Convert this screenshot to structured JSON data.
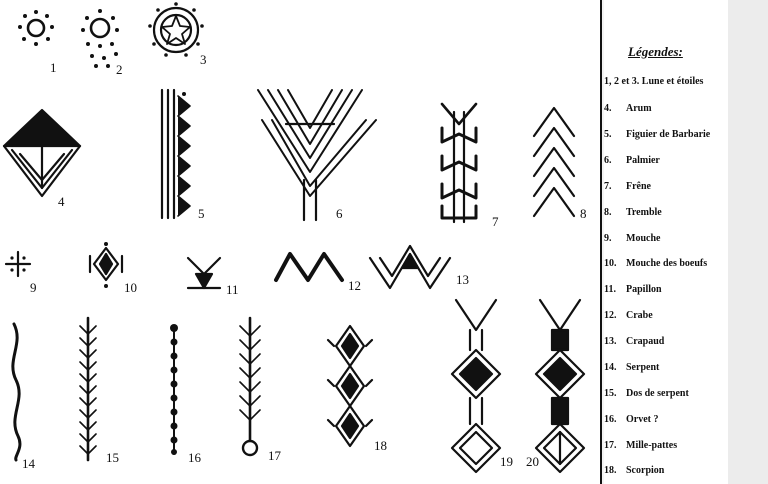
{
  "diagram": {
    "figure_labels": [
      "1",
      "2",
      "3",
      "4",
      "5",
      "6",
      "7",
      "8",
      "9",
      "10",
      "11",
      "12",
      "13",
      "14",
      "15",
      "16",
      "17",
      "18",
      "19",
      "20"
    ]
  },
  "legend": {
    "title": "Légendes:",
    "items": [
      {
        "num": "1, 2 et 3.",
        "text": "Lune et étoiles"
      },
      {
        "num": "4.",
        "text": "Arum"
      },
      {
        "num": "5.",
        "text": "Figuier de Barbarie"
      },
      {
        "num": "6.",
        "text": "Palmier"
      },
      {
        "num": "7.",
        "text": "Frêne"
      },
      {
        "num": "8.",
        "text": "Tremble"
      },
      {
        "num": "9.",
        "text": "Mouche"
      },
      {
        "num": "10.",
        "text": "Mouche des boeufs"
      },
      {
        "num": "11.",
        "text": "Papillon"
      },
      {
        "num": "12.",
        "text": "Crabe"
      },
      {
        "num": "13.",
        "text": "Crapaud"
      },
      {
        "num": "14.",
        "text": "Serpent"
      },
      {
        "num": "15.",
        "text": "Dos de serpent"
      },
      {
        "num": "16.",
        "text": "Orvet ?"
      },
      {
        "num": "17.",
        "text": "Mille-pattes"
      },
      {
        "num": "18.",
        "text": "Scorpion"
      }
    ]
  }
}
